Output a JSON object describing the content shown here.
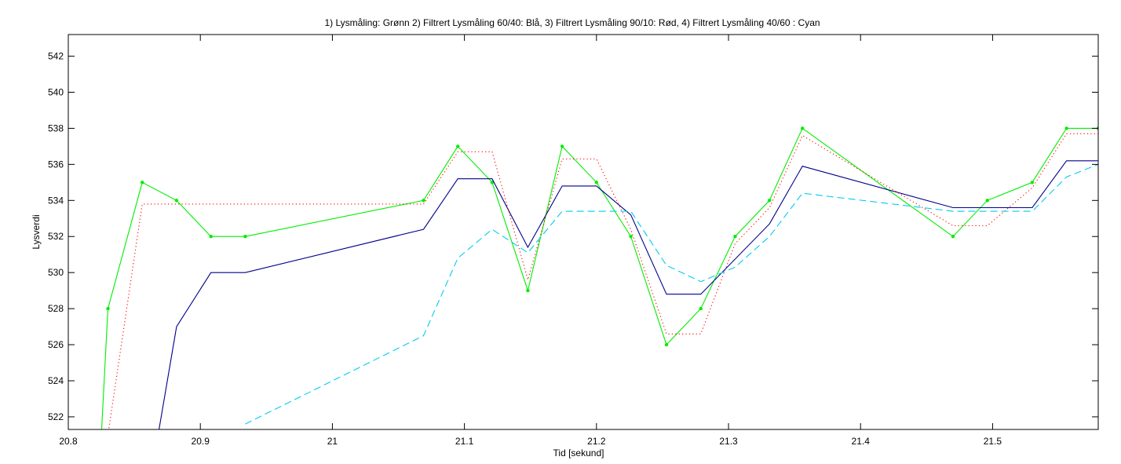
{
  "chart_data": {
    "type": "line",
    "title": "1) Lysmåling: Grønn 2) Filtrert Lysmåling 60/40: Blå, 3) Filtrert Lysmåling 90/10: Rød, 4) Filtrert Lysmåling 40/60 : Cyan",
    "xlabel": "Tid [sekund]",
    "ylabel": "Lysverdi",
    "xlim": [
      20.8,
      21.58
    ],
    "ylim": [
      521.3,
      543.2
    ],
    "xticks": [
      20.8,
      20.9,
      21,
      21.1,
      21.2,
      21.3,
      21.4,
      21.5
    ],
    "xtick_labels": [
      "20.8",
      "20.9",
      "21",
      "21.1",
      "21.2",
      "21.3",
      "21.4",
      "21.5"
    ],
    "yticks": [
      522,
      524,
      526,
      528,
      530,
      532,
      534,
      536,
      538,
      540,
      542
    ],
    "ytick_labels": [
      "522",
      "524",
      "526",
      "528",
      "530",
      "532",
      "534",
      "536",
      "538",
      "540",
      "542"
    ],
    "grid": false,
    "series": [
      {
        "color": "#00ee00",
        "style": "solid",
        "markers": true,
        "points": [
          [
            20.825,
            521
          ],
          [
            20.83,
            528
          ],
          [
            20.856,
            535
          ],
          [
            20.882,
            534
          ],
          [
            20.908,
            532
          ],
          [
            20.934,
            532
          ],
          [
            21.069,
            534
          ],
          [
            21.095,
            537
          ],
          [
            21.121,
            535
          ],
          [
            21.148,
            529
          ],
          [
            21.174,
            537
          ],
          [
            21.2,
            535
          ],
          [
            21.226,
            532
          ],
          [
            21.253,
            526
          ],
          [
            21.279,
            528
          ],
          [
            21.305,
            532
          ],
          [
            21.331,
            534
          ],
          [
            21.356,
            538
          ],
          [
            21.47,
            532
          ],
          [
            21.496,
            534
          ],
          [
            21.53,
            535
          ],
          [
            21.556,
            538
          ],
          [
            21.58,
            538
          ]
        ]
      },
      {
        "color": "#00008b",
        "style": "solid",
        "markers": false,
        "points": [
          [
            20.868,
            521
          ],
          [
            20.882,
            527
          ],
          [
            20.908,
            530
          ],
          [
            20.934,
            530
          ],
          [
            21.069,
            532.4
          ],
          [
            21.095,
            535.2
          ],
          [
            21.121,
            535.2
          ],
          [
            21.148,
            531.4
          ],
          [
            21.174,
            534.8
          ],
          [
            21.2,
            534.8
          ],
          [
            21.226,
            533.2
          ],
          [
            21.253,
            528.8
          ],
          [
            21.279,
            528.8
          ],
          [
            21.331,
            532.7
          ],
          [
            21.356,
            535.9
          ],
          [
            21.47,
            533.6
          ],
          [
            21.53,
            533.6
          ],
          [
            21.556,
            536.2
          ],
          [
            21.58,
            536.2
          ]
        ]
      },
      {
        "color": "#ff0000",
        "style": "dotted",
        "markers": false,
        "points": [
          [
            20.83,
            521
          ],
          [
            20.856,
            533.8
          ],
          [
            20.882,
            533.8
          ],
          [
            21.069,
            533.8
          ],
          [
            21.095,
            536.7
          ],
          [
            21.121,
            536.7
          ],
          [
            21.148,
            529.6
          ],
          [
            21.174,
            536.3
          ],
          [
            21.2,
            536.3
          ],
          [
            21.226,
            532.4
          ],
          [
            21.253,
            526.6
          ],
          [
            21.279,
            526.6
          ],
          [
            21.305,
            531.6
          ],
          [
            21.331,
            533.6
          ],
          [
            21.356,
            537.6
          ],
          [
            21.47,
            532.6
          ],
          [
            21.496,
            532.6
          ],
          [
            21.53,
            534.7
          ],
          [
            21.556,
            537.7
          ],
          [
            21.58,
            537.7
          ]
        ]
      },
      {
        "color": "#00ccee",
        "style": "dashed",
        "markers": false,
        "points": [
          [
            20.934,
            521.6
          ],
          [
            21.069,
            526.5
          ],
          [
            21.095,
            530.8
          ],
          [
            21.121,
            532.4
          ],
          [
            21.148,
            531.1
          ],
          [
            21.174,
            533.4
          ],
          [
            21.226,
            533.4
          ],
          [
            21.253,
            530.4
          ],
          [
            21.279,
            529.5
          ],
          [
            21.305,
            530.3
          ],
          [
            21.331,
            532.0
          ],
          [
            21.356,
            534.4
          ],
          [
            21.47,
            533.4
          ],
          [
            21.53,
            533.4
          ],
          [
            21.556,
            535.3
          ],
          [
            21.58,
            536.0
          ]
        ]
      }
    ]
  }
}
